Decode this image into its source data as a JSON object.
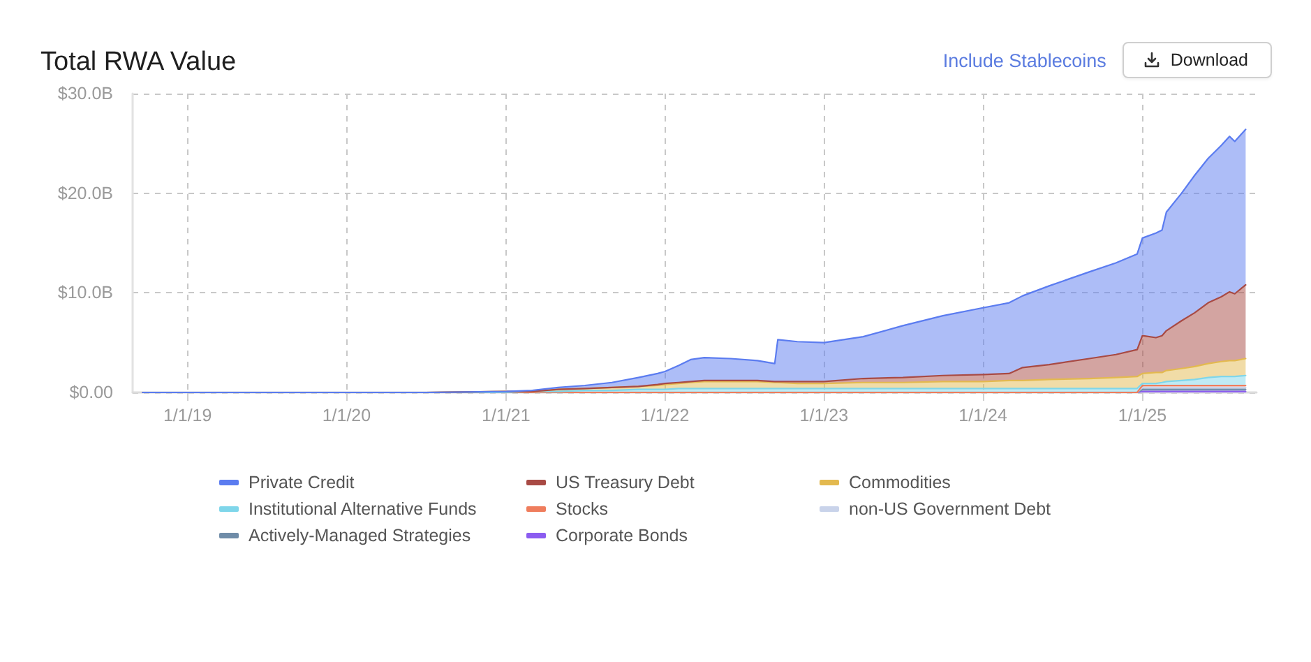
{
  "chart_data": {
    "type": "area",
    "title": "Total RWA Value",
    "stacked": true,
    "grid": true,
    "legend": "bottom",
    "marker": "none",
    "annotations": [
      "Include Stablecoins",
      "Download"
    ],
    "xlim": [
      "2018-08-28",
      "2025-09-20"
    ],
    "xticks": [
      {
        "value": "2019-01-01",
        "label": "1/1/19"
      },
      {
        "value": "2020-01-01",
        "label": "1/1/20"
      },
      {
        "value": "2021-01-01",
        "label": "1/1/21"
      },
      {
        "value": "2022-01-01",
        "label": "1/1/22"
      },
      {
        "value": "2023-01-01",
        "label": "1/1/23"
      },
      {
        "value": "2024-01-01",
        "label": "1/1/24"
      },
      {
        "value": "2025-01-01",
        "label": "1/1/25"
      }
    ],
    "ylim": [
      0,
      30
    ],
    "yticks": [
      {
        "value": 0,
        "label": "$0.00"
      },
      {
        "value": 10,
        "label": "$10.0B"
      },
      {
        "value": 20,
        "label": "$20.0B"
      },
      {
        "value": 30,
        "label": "$30.0B"
      }
    ],
    "x": [
      "2018-09-20",
      "2019-07-01",
      "2020-07-01",
      "2021-01-01",
      "2021-03-01",
      "2021-05-01",
      "2021-07-01",
      "2021-09-01",
      "2021-11-01",
      "2021-12-15",
      "2022-01-01",
      "2022-02-01",
      "2022-03-01",
      "2022-04-01",
      "2022-06-01",
      "2022-08-01",
      "2022-09-10",
      "2022-09-17",
      "2022-11-01",
      "2023-01-01",
      "2023-04-01",
      "2023-07-01",
      "2023-10-01",
      "2024-01-01",
      "2024-03-01",
      "2024-04-01",
      "2024-06-01",
      "2024-09-01",
      "2024-11-01",
      "2024-12-20",
      "2025-01-01",
      "2025-02-01",
      "2025-02-15",
      "2025-02-25",
      "2025-04-01",
      "2025-05-01",
      "2025-06-01",
      "2025-07-01",
      "2025-07-20",
      "2025-08-01",
      "2025-08-26"
    ],
    "series": [
      {
        "name": "Corporate Bonds",
        "color": "#8b5cf0",
        "values": [
          0,
          0,
          0,
          0,
          0,
          0,
          0,
          0,
          0,
          0,
          0,
          0,
          0,
          0,
          0,
          0,
          0,
          0,
          0,
          0,
          0,
          0,
          0,
          0,
          0,
          0,
          0,
          0,
          0,
          0,
          0.1,
          0.1,
          0.1,
          0.1,
          0.1,
          0.1,
          0.1,
          0.1,
          0.1,
          0.1,
          0.1
        ]
      },
      {
        "name": "Actively-Managed Strategies",
        "color": "#6f8ca8",
        "values": [
          0,
          0,
          0,
          0,
          0,
          0,
          0,
          0,
          0,
          0,
          0,
          0,
          0,
          0,
          0,
          0,
          0,
          0,
          0,
          0,
          0,
          0,
          0,
          0,
          0,
          0,
          0,
          0,
          0,
          0,
          0.2,
          0.2,
          0.2,
          0.2,
          0.2,
          0.2,
          0.2,
          0.2,
          0.2,
          0.2,
          0.2
        ]
      },
      {
        "name": "non-US Government Debt",
        "color": "#c9d3ea",
        "values": [
          0,
          0,
          0,
          0,
          0,
          0,
          0,
          0,
          0,
          0,
          0,
          0,
          0,
          0,
          0,
          0,
          0,
          0,
          0,
          0,
          0,
          0,
          0,
          0,
          0,
          0,
          0,
          0,
          0,
          0,
          0.2,
          0.2,
          0.2,
          0.2,
          0.2,
          0.2,
          0.2,
          0.2,
          0.2,
          0.2,
          0.2
        ]
      },
      {
        "name": "Stocks",
        "color": "#ef7d5d",
        "values": [
          0,
          0,
          0,
          0,
          0,
          0,
          0,
          0,
          0,
          0,
          0,
          0,
          0,
          0,
          0,
          0,
          0,
          0,
          0,
          0,
          0,
          0,
          0,
          0,
          0,
          0,
          0,
          0,
          0,
          0,
          0.2,
          0.2,
          0.2,
          0.2,
          0.2,
          0.2,
          0.2,
          0.2,
          0.2,
          0.2,
          0.2
        ]
      },
      {
        "name": "Institutional Alternative Funds",
        "color": "#7fd6ea",
        "values": [
          0,
          0,
          0,
          0,
          0.1,
          0.1,
          0.2,
          0.2,
          0.3,
          0.3,
          0.3,
          0.4,
          0.4,
          0.4,
          0.4,
          0.4,
          0.4,
          0.4,
          0.4,
          0.4,
          0.4,
          0.4,
          0.4,
          0.4,
          0.4,
          0.4,
          0.4,
          0.4,
          0.4,
          0.4,
          0.2,
          0.2,
          0.3,
          0.4,
          0.5,
          0.6,
          0.8,
          0.9,
          0.9,
          0.9,
          1.0
        ]
      },
      {
        "name": "Commodities",
        "color": "#e3b94f",
        "values": [
          0,
          0,
          0,
          0.1,
          0,
          0.2,
          0.2,
          0.3,
          0.3,
          0.4,
          0.5,
          0.5,
          0.6,
          0.7,
          0.7,
          0.7,
          0.6,
          0.6,
          0.5,
          0.5,
          0.6,
          0.6,
          0.7,
          0.7,
          0.8,
          0.8,
          0.9,
          1.0,
          1.1,
          1.2,
          1.0,
          1.1,
          1.0,
          1.1,
          1.2,
          1.3,
          1.4,
          1.5,
          1.6,
          1.6,
          1.7
        ]
      },
      {
        "name": "US Treasury Debt",
        "color": "#a84a44",
        "values": [
          0,
          0,
          0,
          0,
          0,
          0,
          0,
          0,
          0,
          0.1,
          0.1,
          0.1,
          0.1,
          0.1,
          0.1,
          0.1,
          0.1,
          0.1,
          0.2,
          0.2,
          0.4,
          0.5,
          0.6,
          0.7,
          0.7,
          1.3,
          1.5,
          2.0,
          2.3,
          2.7,
          3.8,
          3.5,
          3.7,
          4.0,
          4.8,
          5.4,
          6.1,
          6.5,
          6.9,
          6.7,
          7.4
        ]
      },
      {
        "name": "Private Credit",
        "color": "#5b7cf0",
        "values": [
          0,
          0,
          0,
          0,
          0.1,
          0.2,
          0.3,
          0.5,
          0.9,
          1.1,
          1.2,
          1.7,
          2.2,
          2.3,
          2.2,
          2.0,
          1.8,
          4.2,
          4.0,
          3.9,
          4.2,
          5.2,
          6.0,
          6.7,
          7.1,
          7.2,
          7.9,
          8.7,
          9.2,
          9.6,
          9.8,
          10.5,
          10.6,
          11.9,
          12.8,
          13.8,
          14.5,
          15.2,
          15.6,
          15.3,
          15.6
        ]
      }
    ]
  }
}
